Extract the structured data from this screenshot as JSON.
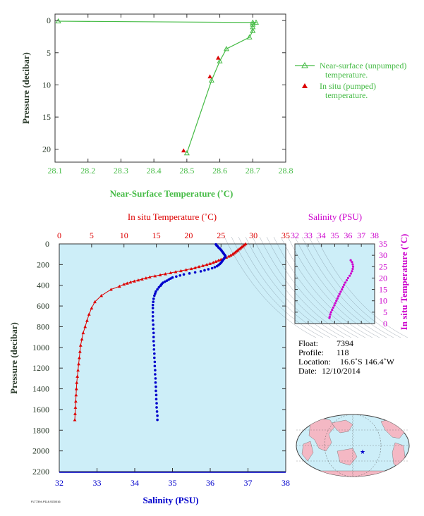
{
  "colors": {
    "green": "#44bb44",
    "red": "#dd0000",
    "blue": "#0000cc",
    "magenta": "#cc00cc",
    "axis_dark": "#333333",
    "panel_bg": "#cdeef8",
    "land": "#f4b8c4",
    "ocean": "#cdeef8"
  },
  "chart_data": [
    {
      "type": "line",
      "xlabel": "Near-Surface Temperature (˚C)",
      "ylabel": "Pressure (decibar)",
      "xlim": [
        28.1,
        28.8
      ],
      "ylim": [
        22,
        -1
      ],
      "xticks": [
        "28.1",
        "28.2",
        "28.3",
        "28.4",
        "28.5",
        "28.6",
        "28.7",
        "28.8"
      ],
      "yticks": [
        "0",
        "5",
        "10",
        "15",
        "20"
      ],
      "series": [
        {
          "name": "Near-surface (unpumped) temperature.",
          "marker": "triangle-open",
          "points": [
            [
              28.11,
              0.1
            ],
            [
              28.7,
              0.3
            ],
            [
              28.71,
              0.3
            ],
            [
              28.7,
              0.6
            ],
            [
              28.7,
              1.0
            ],
            [
              28.7,
              1.6
            ],
            [
              28.69,
              2.6
            ],
            [
              28.62,
              4.4
            ],
            [
              28.6,
              6.3
            ],
            [
              28.575,
              9.3
            ],
            [
              28.5,
              20.6
            ]
          ]
        },
        {
          "name": "In situ (pumped) temperature.",
          "marker": "triangle-filled",
          "points": [
            [
              28.595,
              5.8
            ],
            [
              28.57,
              8.7
            ],
            [
              28.49,
              20.2
            ]
          ]
        }
      ]
    },
    {
      "type": "scatter",
      "top_xlabel": "In situ Temperature (˚C)",
      "xlabel": "Salinity (PSU)",
      "ylabel": "Pressure (decibar)",
      "temp_lim": [
        0,
        35
      ],
      "sal_lim": [
        32,
        38
      ],
      "ylim": [
        2200,
        0
      ],
      "temp_ticks": [
        "0",
        "5",
        "10",
        "15",
        "20",
        "25",
        "30",
        "35"
      ],
      "sal_ticks": [
        "32",
        "33",
        "34",
        "35",
        "36",
        "37",
        "38"
      ],
      "yticks": [
        "0",
        "200",
        "400",
        "600",
        "800",
        "1000",
        "1200",
        "1400",
        "1600",
        "1800",
        "2000",
        "2200"
      ],
      "temperature": {
        "pressure": [
          0,
          10,
          20,
          30,
          40,
          50,
          60,
          70,
          80,
          90,
          100,
          110,
          120,
          130,
          140,
          150,
          160,
          170,
          180,
          190,
          200,
          210,
          220,
          230,
          240,
          250,
          260,
          270,
          280,
          290,
          300,
          310,
          320,
          330,
          340,
          350,
          360,
          370,
          380,
          390,
          410,
          440,
          500,
          560,
          620,
          680,
          740,
          800,
          860,
          920,
          980,
          1040,
          1100,
          1160,
          1220,
          1280,
          1340,
          1400,
          1460,
          1520,
          1580,
          1640,
          1700
        ],
        "values": [
          28.8,
          28.6,
          28.4,
          28.2,
          28.0,
          27.8,
          27.6,
          27.4,
          27.2,
          27.0,
          26.8,
          26.5,
          26.2,
          25.8,
          25.4,
          25.0,
          24.6,
          24.2,
          23.8,
          23.3,
          22.8,
          22.2,
          21.6,
          21.0,
          20.4,
          19.6,
          18.8,
          18.0,
          17.2,
          16.4,
          15.6,
          14.8,
          14.0,
          13.4,
          12.8,
          12.2,
          11.6,
          11.0,
          10.5,
          10.0,
          9.3,
          8.0,
          6.5,
          5.5,
          5.0,
          4.6,
          4.3,
          4.0,
          3.7,
          3.5,
          3.3,
          3.2,
          3.1,
          3.0,
          2.9,
          2.8,
          2.7,
          2.65,
          2.6,
          2.55,
          2.5,
          2.45,
          2.4
        ]
      },
      "salinity": {
        "pressure": [
          5,
          15,
          25,
          35,
          45,
          55,
          65,
          75,
          85,
          95,
          105,
          115,
          125,
          135,
          145,
          155,
          165,
          175,
          185,
          195,
          205,
          215,
          225,
          235,
          245,
          255,
          265,
          275,
          285,
          295,
          305,
          315,
          325,
          335,
          345,
          355,
          365,
          375,
          385,
          395,
          405,
          420,
          440,
          460,
          480,
          500,
          530,
          560,
          590,
          620,
          660,
          700,
          740,
          780,
          820,
          860,
          900,
          940,
          980,
          1020,
          1060,
          1100,
          1140,
          1180,
          1220,
          1260,
          1300,
          1340,
          1380,
          1420,
          1460,
          1500,
          1540,
          1580,
          1620,
          1660,
          1700
        ],
        "values": [
          36.15,
          36.17,
          36.2,
          36.22,
          36.25,
          36.28,
          36.3,
          36.32,
          36.34,
          36.36,
          36.38,
          36.4,
          36.4,
          36.38,
          36.36,
          36.34,
          36.32,
          36.3,
          36.28,
          36.25,
          36.22,
          36.18,
          36.12,
          36.05,
          35.95,
          35.85,
          35.75,
          35.6,
          35.45,
          35.3,
          35.2,
          35.1,
          35.0,
          34.95,
          34.9,
          34.85,
          34.8,
          34.75,
          34.72,
          34.7,
          34.68,
          34.64,
          34.6,
          34.56,
          34.54,
          34.52,
          34.5,
          34.49,
          34.48,
          34.48,
          34.48,
          34.48,
          34.48,
          34.49,
          34.49,
          34.5,
          34.5,
          34.5,
          34.51,
          34.51,
          34.52,
          34.52,
          34.53,
          34.53,
          34.54,
          34.54,
          34.55,
          34.55,
          34.56,
          34.56,
          34.57,
          34.57,
          34.58,
          34.58,
          34.59,
          34.6,
          34.6
        ]
      }
    },
    {
      "type": "scatter",
      "title": "Salinity (PSU)",
      "ylabel": "In situ Temperature (˚C)",
      "xlim": [
        32,
        38
      ],
      "ylim": [
        0,
        35
      ],
      "xticks": [
        "32",
        "33",
        "34",
        "35",
        "36",
        "37",
        "38"
      ],
      "yticks": [
        "0",
        "5",
        "10",
        "15",
        "20",
        "25",
        "30",
        "35"
      ],
      "points": [
        [
          36.2,
          27.8
        ],
        [
          36.3,
          27.0
        ],
        [
          36.35,
          26.0
        ],
        [
          36.38,
          25.0
        ],
        [
          36.35,
          24.0
        ],
        [
          36.3,
          23.0
        ],
        [
          36.22,
          22.0
        ],
        [
          36.12,
          21.0
        ],
        [
          36.0,
          20.0
        ],
        [
          35.9,
          19.0
        ],
        [
          35.8,
          18.0
        ],
        [
          35.7,
          17.0
        ],
        [
          35.62,
          16.0
        ],
        [
          35.54,
          15.0
        ],
        [
          35.45,
          14.0
        ],
        [
          35.36,
          13.0
        ],
        [
          35.28,
          12.0
        ],
        [
          35.2,
          11.0
        ],
        [
          35.12,
          10.0
        ],
        [
          35.04,
          9.0
        ],
        [
          34.97,
          8.0
        ],
        [
          34.88,
          7.0
        ],
        [
          34.8,
          6.0
        ],
        [
          34.72,
          5.0
        ],
        [
          34.66,
          4.0
        ],
        [
          34.62,
          3.0
        ],
        [
          34.6,
          2.5
        ]
      ]
    }
  ],
  "info": {
    "float_label": "Float:",
    "float_value": "7394",
    "profile_label": "Profile:",
    "profile_value": "118",
    "location_label": "Location:",
    "location_value": "16.6˚S  146.4˚W",
    "date_label": "Date:",
    "date_value": "12/10/2014"
  },
  "footer_text": "FLT7394.P118.SG0016"
}
